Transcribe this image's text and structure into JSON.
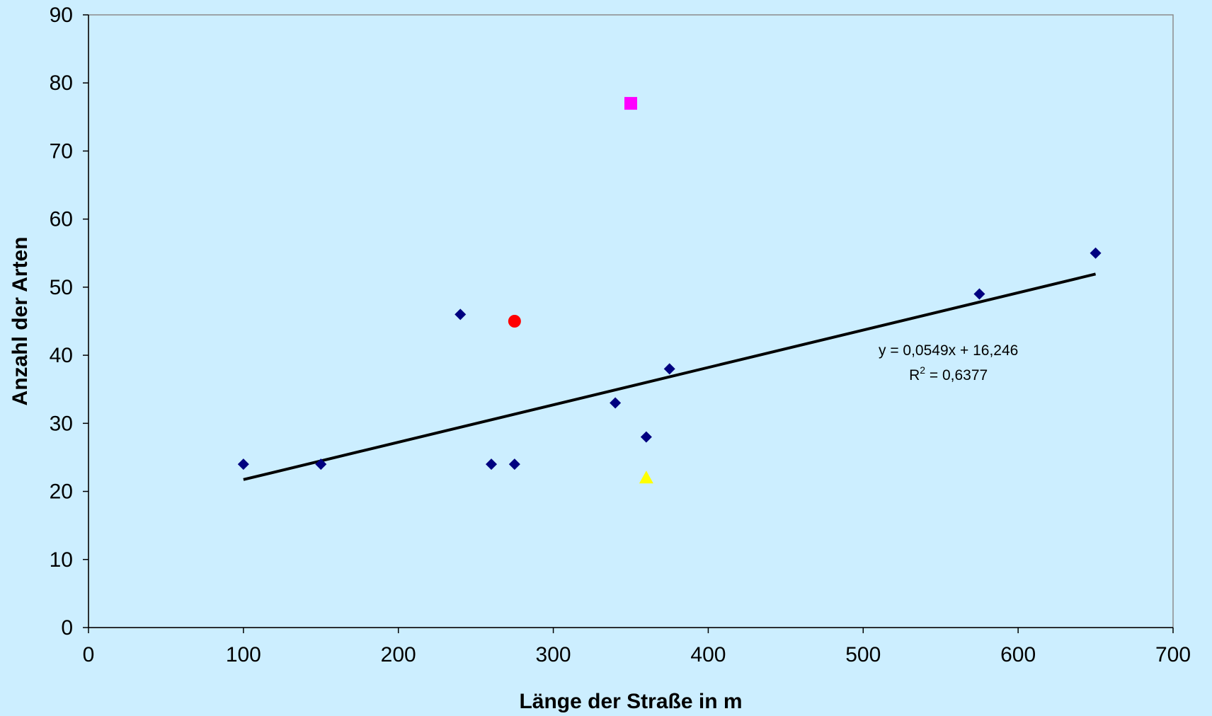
{
  "chart_data": {
    "type": "scatter",
    "xlabel": "Länge der Straße in m",
    "ylabel": "Anzahl der Arten",
    "xlim": [
      0,
      700
    ],
    "ylim": [
      0,
      90
    ],
    "xticks": [
      "0",
      "100",
      "200",
      "300",
      "400",
      "500",
      "600",
      "700"
    ],
    "yticks": [
      "0",
      "10",
      "20",
      "30",
      "40",
      "50",
      "60",
      "70",
      "80",
      "90"
    ],
    "grid": false,
    "background": "#cceeff",
    "series": [
      {
        "marker": "diamond",
        "color": "#000080",
        "points": [
          {
            "x": 100,
            "y": 24
          },
          {
            "x": 150,
            "y": 24
          },
          {
            "x": 240,
            "y": 46
          },
          {
            "x": 260,
            "y": 24
          },
          {
            "x": 275,
            "y": 24
          },
          {
            "x": 340,
            "y": 33
          },
          {
            "x": 360,
            "y": 28
          },
          {
            "x": 375,
            "y": 38
          },
          {
            "x": 575,
            "y": 49
          },
          {
            "x": 650,
            "y": 55
          }
        ]
      },
      {
        "marker": "square",
        "color": "#ff00ff",
        "points": [
          {
            "x": 350,
            "y": 77
          }
        ]
      },
      {
        "marker": "circle",
        "color": "#ff0000",
        "points": [
          {
            "x": 275,
            "y": 45
          }
        ]
      },
      {
        "marker": "triangle",
        "color": "#ffff00",
        "points": [
          {
            "x": 360,
            "y": 22
          }
        ]
      }
    ],
    "trendline": {
      "slope": 0.0549,
      "intercept": 16.246,
      "x_range": [
        100,
        650
      ],
      "color": "#000000",
      "equation_text": "y = 0,0549x + 16,246",
      "r2_prefix": "R",
      "r2_sup": "2",
      "r2_value": " = 0,6377",
      "label_position": {
        "x": 555,
        "y": 40
      }
    }
  }
}
